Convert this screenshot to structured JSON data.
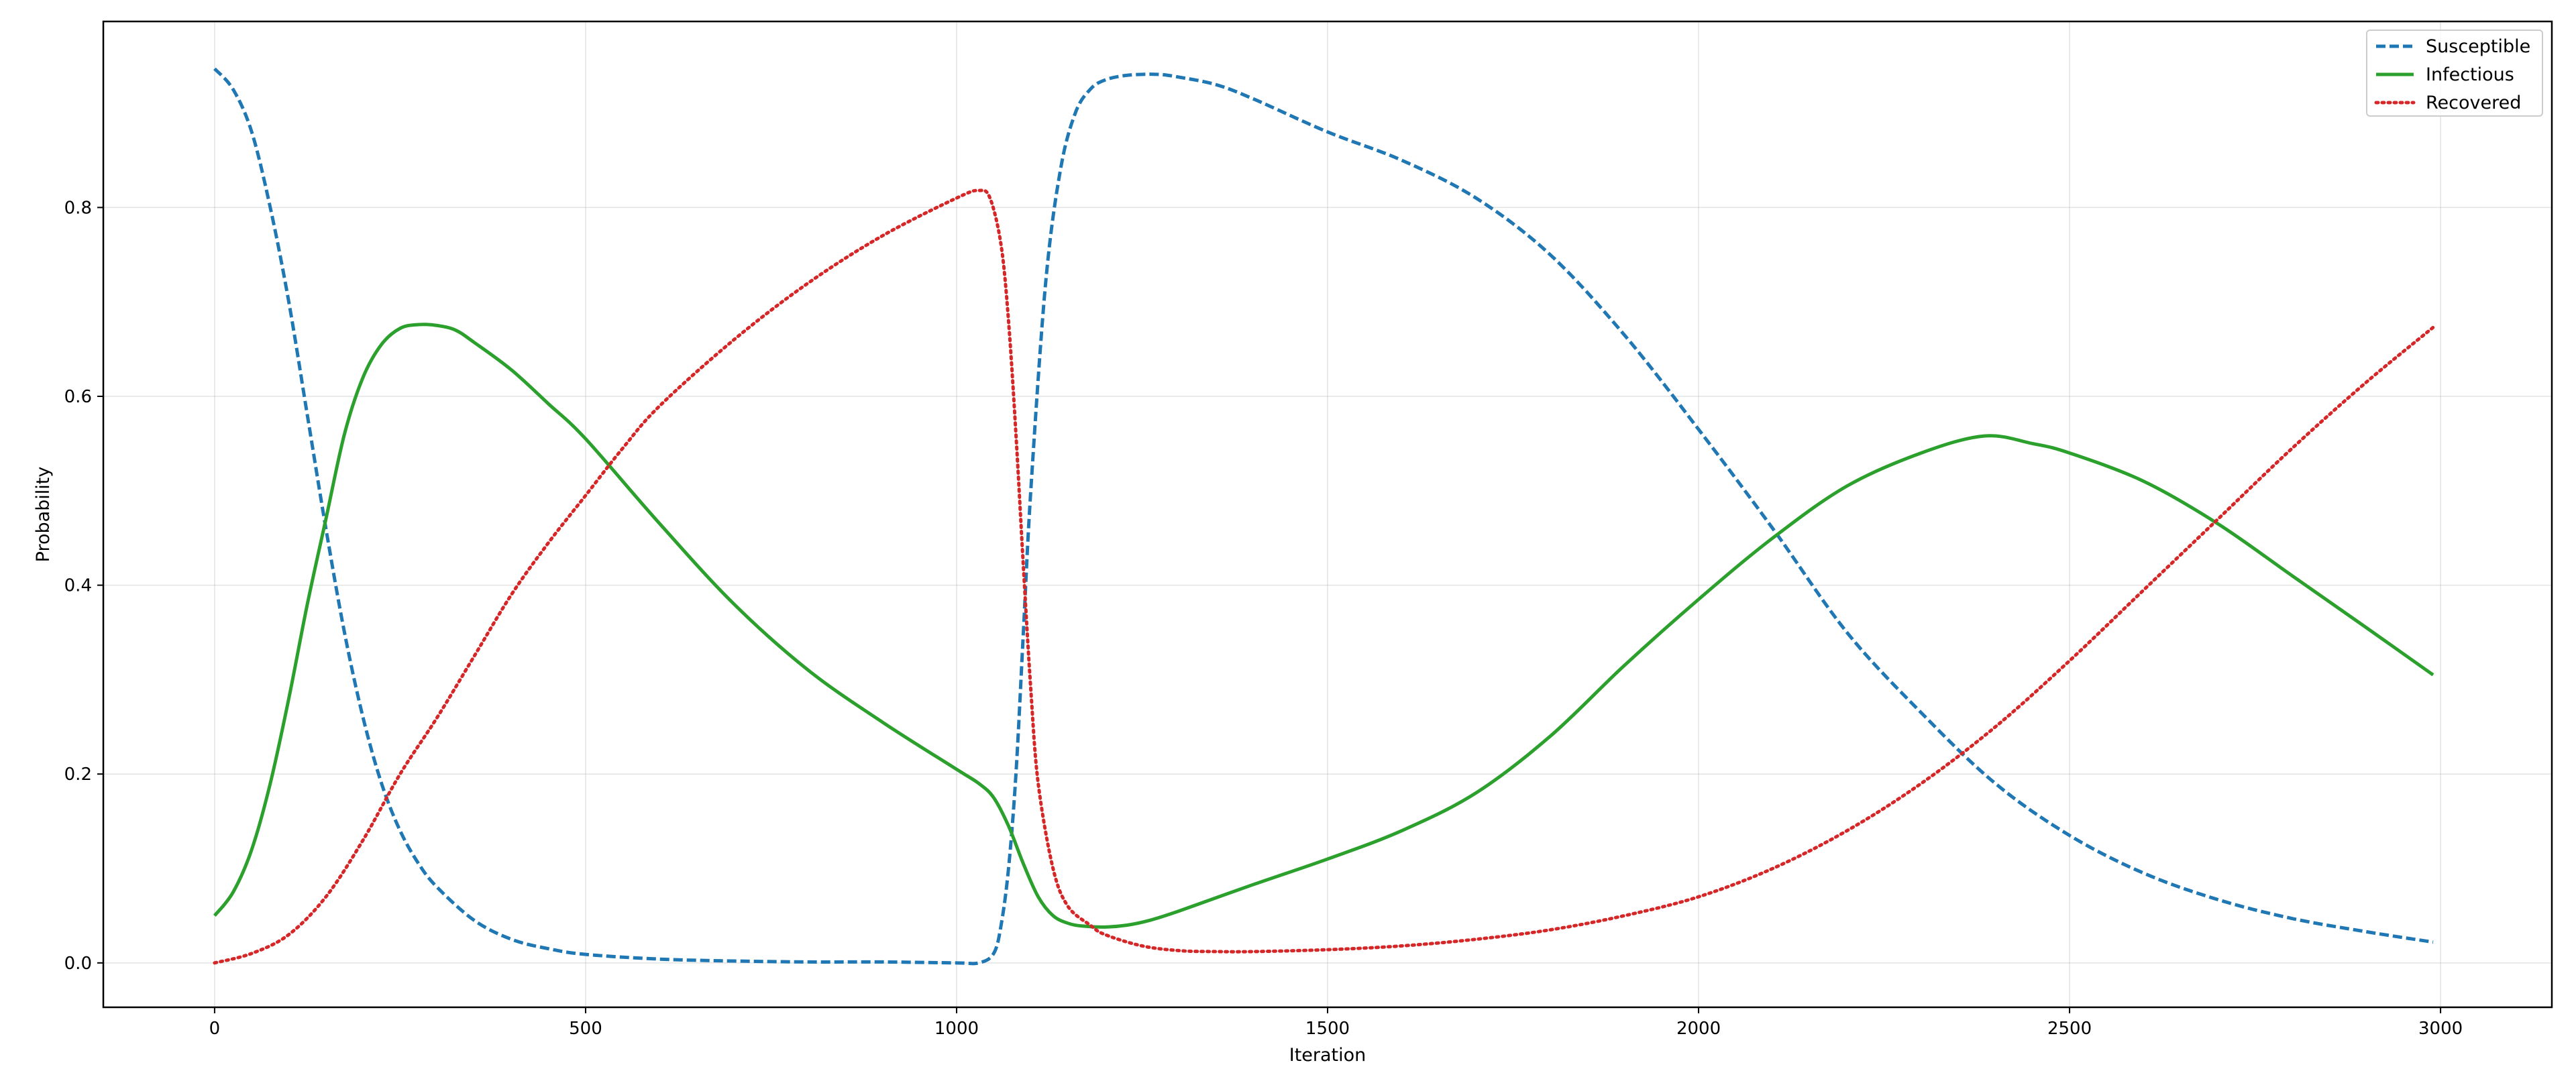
{
  "chart_data": {
    "type": "line",
    "xlabel": "Iteration",
    "ylabel": "Probability",
    "xlim": [
      -150,
      3150
    ],
    "ylim": [
      -0.047,
      0.997
    ],
    "xticks": [
      0,
      500,
      1000,
      1500,
      2000,
      2500,
      3000
    ],
    "yticks": [
      0.0,
      0.2,
      0.4,
      0.6,
      0.8
    ],
    "grid": true,
    "legend_position": "top-right",
    "series": [
      {
        "name": "Susceptible",
        "color": "#1f77b4",
        "style": "dashed",
        "x": [
          0,
          25,
          50,
          75,
          100,
          125,
          150,
          175,
          200,
          225,
          250,
          275,
          300,
          350,
          400,
          450,
          500,
          600,
          700,
          800,
          900,
          1000,
          1030,
          1050,
          1060,
          1070,
          1080,
          1090,
          1100,
          1120,
          1140,
          1160,
          1180,
          1200,
          1230,
          1270,
          1300,
          1350,
          1400,
          1500,
          1600,
          1700,
          1800,
          1900,
          2000,
          2100,
          2200,
          2300,
          2400,
          2500,
          2600,
          2700,
          2800,
          2900,
          2990
        ],
        "y": [
          0.947,
          0.925,
          0.88,
          0.8,
          0.7,
          0.58,
          0.46,
          0.35,
          0.26,
          0.19,
          0.14,
          0.105,
          0.08,
          0.045,
          0.025,
          0.015,
          0.009,
          0.004,
          0.002,
          0.001,
          0.001,
          0.0,
          0.0,
          0.01,
          0.04,
          0.1,
          0.2,
          0.35,
          0.5,
          0.72,
          0.84,
          0.9,
          0.925,
          0.935,
          0.94,
          0.941,
          0.938,
          0.93,
          0.915,
          0.88,
          0.85,
          0.81,
          0.75,
          0.665,
          0.565,
          0.46,
          0.35,
          0.265,
          0.19,
          0.135,
          0.095,
          0.067,
          0.047,
          0.033,
          0.022
        ]
      },
      {
        "name": "Infectious",
        "color": "#2ca02c",
        "style": "solid",
        "x": [
          0,
          25,
          50,
          75,
          100,
          125,
          150,
          175,
          200,
          225,
          250,
          275,
          300,
          325,
          350,
          400,
          450,
          500,
          600,
          700,
          800,
          900,
          1000,
          1030,
          1050,
          1070,
          1090,
          1110,
          1130,
          1150,
          1170,
          1200,
          1230,
          1260,
          1300,
          1400,
          1500,
          1600,
          1700,
          1800,
          1900,
          2000,
          2100,
          2200,
          2300,
          2385,
          2450,
          2500,
          2600,
          2700,
          2800,
          2900,
          2990
        ],
        "y": [
          0.05,
          0.075,
          0.12,
          0.19,
          0.28,
          0.38,
          0.47,
          0.56,
          0.62,
          0.655,
          0.672,
          0.676,
          0.675,
          0.67,
          0.657,
          0.628,
          0.592,
          0.555,
          0.465,
          0.38,
          0.31,
          0.255,
          0.205,
          0.19,
          0.175,
          0.145,
          0.105,
          0.07,
          0.05,
          0.042,
          0.039,
          0.038,
          0.04,
          0.045,
          0.055,
          0.083,
          0.11,
          0.14,
          0.18,
          0.24,
          0.315,
          0.385,
          0.45,
          0.505,
          0.54,
          0.558,
          0.55,
          0.54,
          0.51,
          0.465,
          0.41,
          0.355,
          0.305
        ]
      },
      {
        "name": "Recovered",
        "color": "#d62728",
        "style": "dotted",
        "x": [
          0,
          50,
          100,
          150,
          200,
          250,
          300,
          350,
          400,
          450,
          500,
          550,
          600,
          700,
          800,
          900,
          1000,
          1030,
          1045,
          1060,
          1070,
          1080,
          1090,
          1100,
          1110,
          1130,
          1150,
          1180,
          1200,
          1250,
          1300,
          1350,
          1400,
          1500,
          1600,
          1700,
          1800,
          1900,
          2000,
          2100,
          2200,
          2300,
          2400,
          2500,
          2600,
          2700,
          2800,
          2900,
          2990
        ],
        "y": [
          0.0,
          0.01,
          0.03,
          0.07,
          0.13,
          0.2,
          0.26,
          0.325,
          0.39,
          0.445,
          0.495,
          0.545,
          0.59,
          0.66,
          0.72,
          0.77,
          0.81,
          0.818,
          0.81,
          0.76,
          0.68,
          0.56,
          0.42,
          0.29,
          0.19,
          0.1,
          0.06,
          0.04,
          0.03,
          0.018,
          0.013,
          0.012,
          0.012,
          0.014,
          0.018,
          0.025,
          0.035,
          0.05,
          0.07,
          0.1,
          0.14,
          0.19,
          0.25,
          0.32,
          0.395,
          0.47,
          0.545,
          0.615,
          0.673
        ]
      }
    ]
  }
}
